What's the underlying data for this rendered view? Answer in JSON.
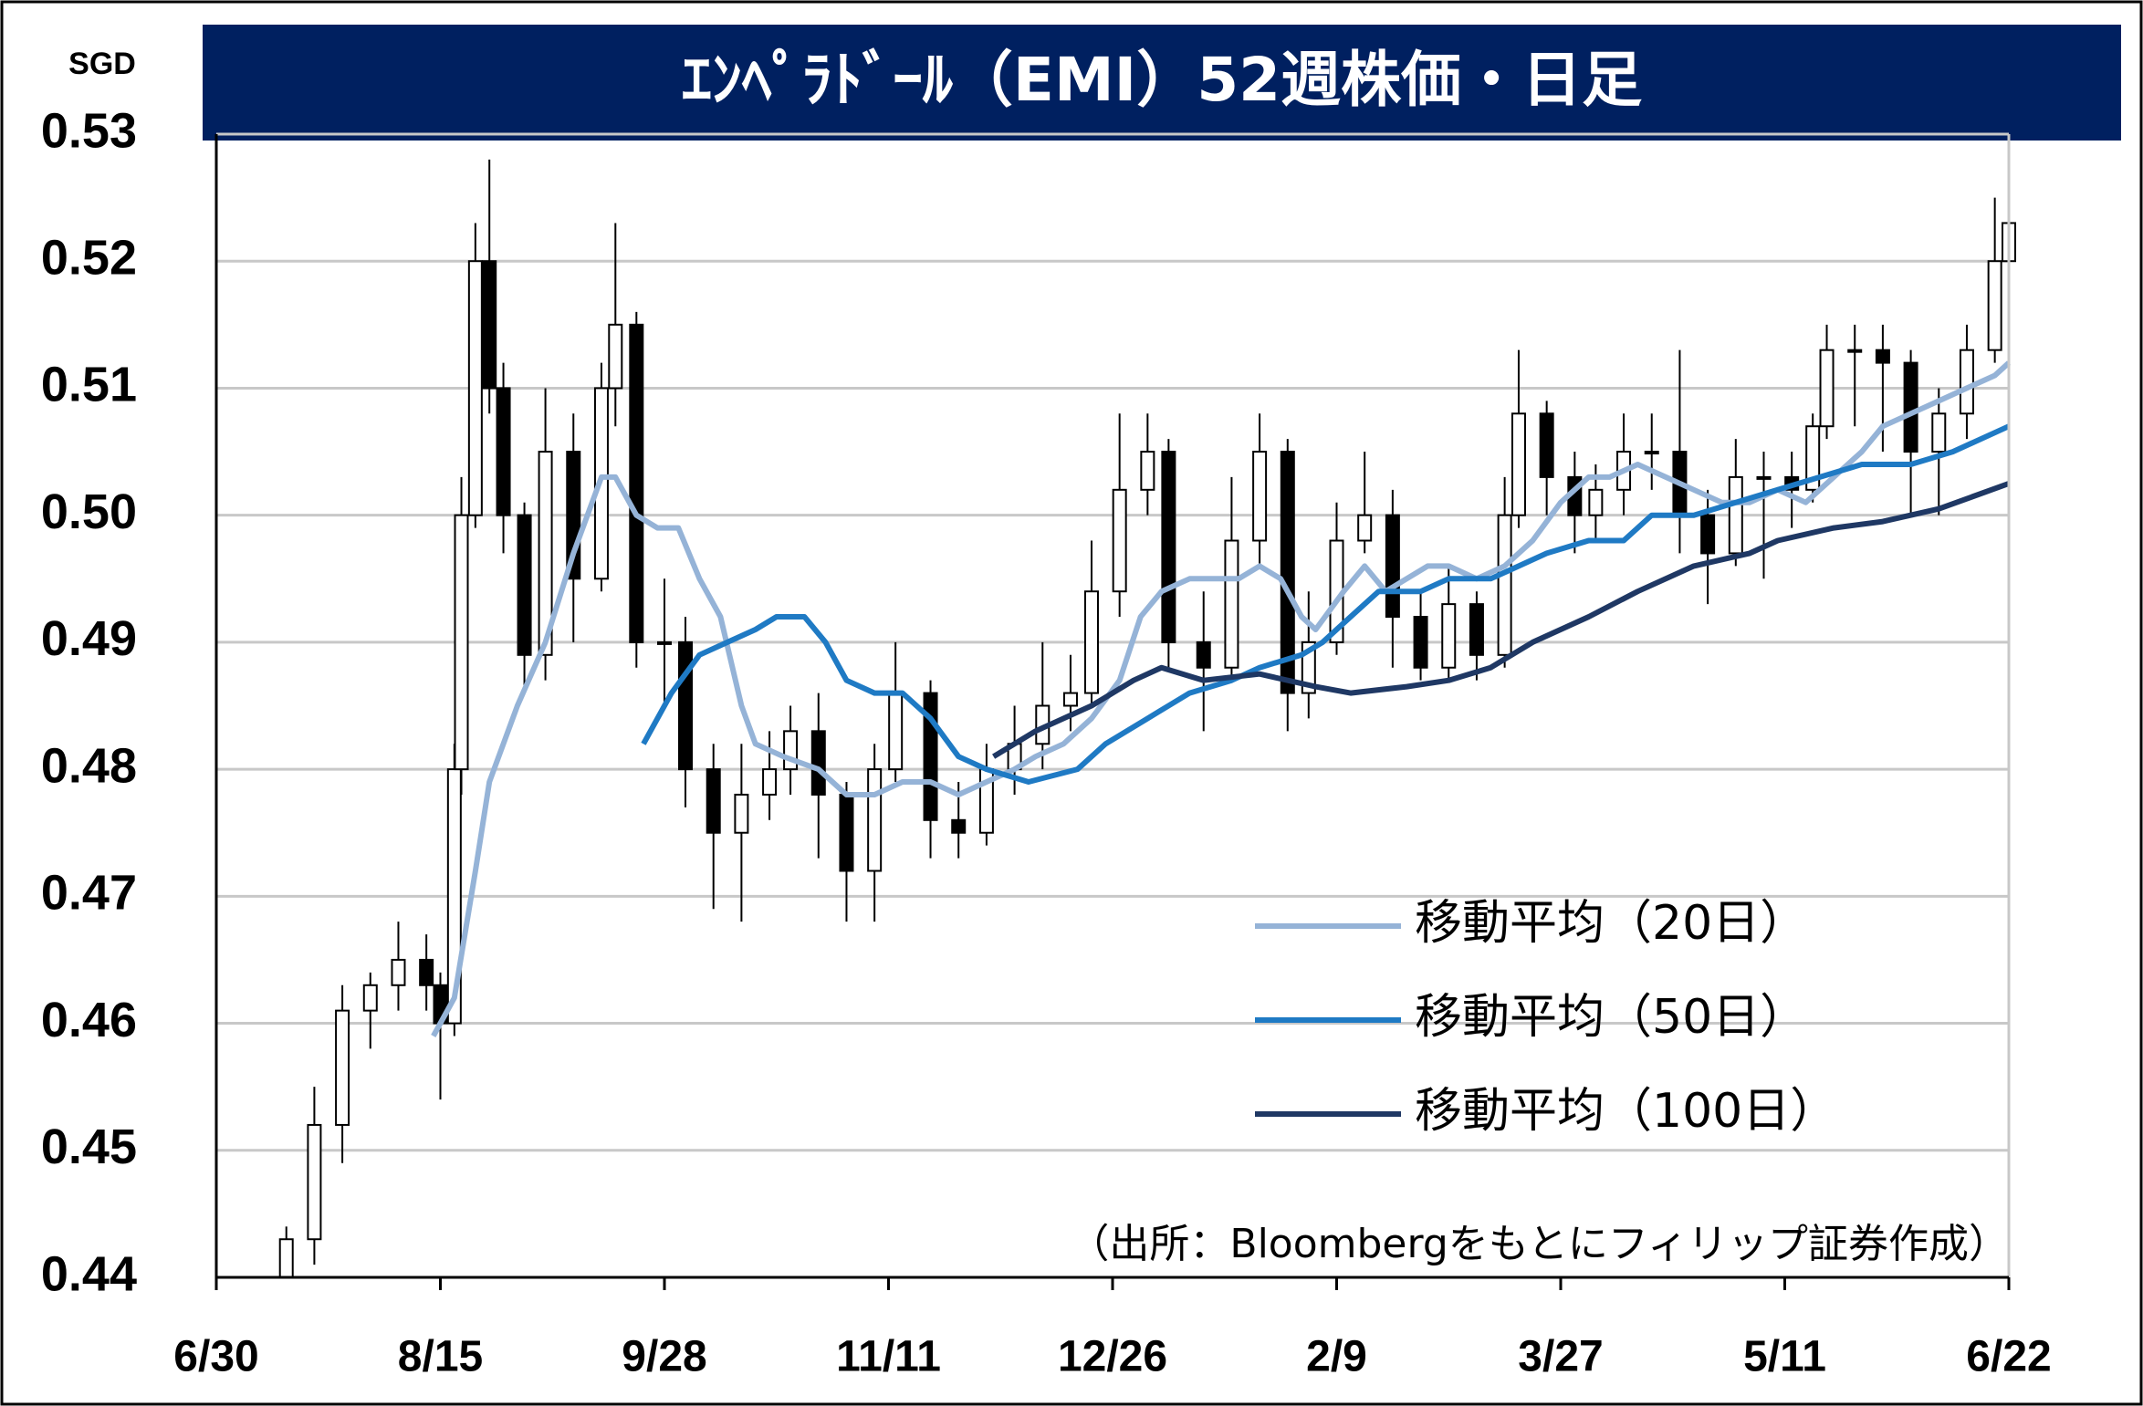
{
  "chart_data": {
    "type": "candlestick",
    "title": "ｴﾝﾍﾟﾗﾄﾞｰﾙ（EMI）52週株価・日足",
    "y_unit_label": "SGD",
    "source": "（出所：Bloombergをもとにフィリップ証券作成）",
    "candles": {
      "up_color": "#ffffff",
      "down_color": "#000000",
      "x": [
        10,
        14,
        18,
        22,
        26,
        30,
        32,
        34,
        35,
        37,
        39,
        41,
        44,
        47,
        51,
        55,
        57,
        60,
        64,
        67,
        71,
        75,
        79,
        82,
        86,
        90,
        94,
        97,
        102,
        106,
        110,
        114,
        118,
        122,
        125,
        129,
        133,
        136,
        141,
        145,
        149,
        153,
        156,
        160,
        164,
        168,
        172,
        176,
        180,
        184,
        186,
        190,
        194,
        197,
        201,
        205,
        209,
        213,
        217,
        221,
        225,
        228,
        230,
        234,
        238,
        242,
        246,
        250,
        254,
        256
      ],
      "open": [
        0.44,
        0.443,
        0.452,
        0.461,
        0.463,
        0.465,
        0.463,
        0.46,
        0.48,
        0.5,
        0.52,
        0.51,
        0.5,
        0.489,
        0.505,
        0.495,
        0.51,
        0.515,
        0.49,
        0.49,
        0.48,
        0.475,
        0.478,
        0.48,
        0.483,
        0.478,
        0.472,
        0.48,
        0.486,
        0.476,
        0.475,
        0.48,
        0.482,
        0.485,
        0.486,
        0.494,
        0.502,
        0.505,
        0.49,
        0.488,
        0.498,
        0.505,
        0.486,
        0.49,
        0.498,
        0.5,
        0.492,
        0.488,
        0.493,
        0.489,
        0.5,
        0.508,
        0.503,
        0.5,
        0.502,
        0.505,
        0.505,
        0.5,
        0.497,
        0.503,
        0.503,
        0.502,
        0.507,
        0.513,
        0.513,
        0.512,
        0.505,
        0.508,
        0.513,
        0.52
      ],
      "high": [
        0.444,
        0.455,
        0.463,
        0.464,
        0.468,
        0.467,
        0.464,
        0.482,
        0.503,
        0.523,
        0.528,
        0.512,
        0.501,
        0.51,
        0.508,
        0.512,
        0.523,
        0.516,
        0.495,
        0.492,
        0.482,
        0.482,
        0.483,
        0.485,
        0.486,
        0.479,
        0.482,
        0.49,
        0.487,
        0.479,
        0.482,
        0.485,
        0.49,
        0.489,
        0.498,
        0.508,
        0.508,
        0.506,
        0.494,
        0.503,
        0.508,
        0.506,
        0.494,
        0.501,
        0.505,
        0.502,
        0.494,
        0.496,
        0.494,
        0.503,
        0.513,
        0.509,
        0.505,
        0.504,
        0.508,
        0.508,
        0.513,
        0.502,
        0.506,
        0.505,
        0.505,
        0.508,
        0.515,
        0.515,
        0.515,
        0.513,
        0.51,
        0.515,
        0.525,
        0.525
      ],
      "low": [
        0.44,
        0.441,
        0.449,
        0.458,
        0.461,
        0.461,
        0.454,
        0.459,
        0.478,
        0.499,
        0.508,
        0.497,
        0.486,
        0.487,
        0.49,
        0.494,
        0.507,
        0.488,
        0.485,
        0.477,
        0.469,
        0.468,
        0.476,
        0.478,
        0.473,
        0.468,
        0.468,
        0.479,
        0.473,
        0.473,
        0.474,
        0.478,
        0.48,
        0.483,
        0.485,
        0.492,
        0.5,
        0.488,
        0.483,
        0.487,
        0.496,
        0.483,
        0.484,
        0.489,
        0.497,
        0.488,
        0.487,
        0.487,
        0.487,
        0.488,
        0.499,
        0.5,
        0.497,
        0.498,
        0.5,
        0.502,
        0.497,
        0.493,
        0.496,
        0.495,
        0.499,
        0.501,
        0.506,
        0.507,
        0.505,
        0.5,
        0.5,
        0.506,
        0.512,
        0.518
      ],
      "close": [
        0.443,
        0.452,
        0.461,
        0.463,
        0.465,
        0.463,
        0.46,
        0.48,
        0.5,
        0.52,
        0.51,
        0.5,
        0.489,
        0.505,
        0.495,
        0.51,
        0.515,
        0.49,
        0.49,
        0.48,
        0.475,
        0.478,
        0.48,
        0.483,
        0.478,
        0.472,
        0.48,
        0.486,
        0.476,
        0.475,
        0.48,
        0.482,
        0.485,
        0.486,
        0.494,
        0.502,
        0.505,
        0.49,
        0.488,
        0.498,
        0.505,
        0.486,
        0.49,
        0.498,
        0.5,
        0.492,
        0.488,
        0.493,
        0.489,
        0.5,
        0.508,
        0.503,
        0.5,
        0.502,
        0.505,
        0.505,
        0.5,
        0.497,
        0.503,
        0.503,
        0.502,
        0.507,
        0.513,
        0.513,
        0.512,
        0.505,
        0.508,
        0.513,
        0.52,
        0.523
      ]
    },
    "series": [
      {
        "name": "移動平均（20日）",
        "color": "#95b3d7",
        "x": [
          31,
          34,
          37,
          39,
          43,
          47,
          51,
          55,
          57,
          60,
          63,
          66,
          69,
          72,
          75,
          77,
          81,
          86,
          90,
          94,
          98,
          102,
          106,
          110,
          114,
          117,
          121,
          125,
          129,
          132,
          135,
          139,
          143,
          146,
          149,
          152,
          155,
          157,
          161,
          164,
          167,
          170,
          173,
          176,
          180,
          184,
          188,
          192,
          196,
          199,
          203,
          207,
          211,
          215,
          219,
          223,
          227,
          231,
          235,
          238,
          242,
          246,
          250,
          254,
          256
        ],
        "values": [
          0.459,
          0.462,
          0.472,
          0.479,
          0.485,
          0.49,
          0.497,
          0.503,
          0.503,
          0.5,
          0.499,
          0.499,
          0.495,
          0.492,
          0.485,
          0.482,
          0.481,
          0.48,
          0.478,
          0.478,
          0.479,
          0.479,
          0.478,
          0.479,
          0.48,
          0.481,
          0.482,
          0.484,
          0.487,
          0.492,
          0.494,
          0.495,
          0.495,
          0.495,
          0.496,
          0.495,
          0.492,
          0.491,
          0.494,
          0.496,
          0.494,
          0.495,
          0.496,
          0.496,
          0.495,
          0.496,
          0.498,
          0.501,
          0.503,
          0.503,
          0.504,
          0.503,
          0.502,
          0.501,
          0.501,
          0.502,
          0.501,
          0.503,
          0.505,
          0.507,
          0.508,
          0.509,
          0.51,
          0.511,
          0.512
        ]
      },
      {
        "name": "移動平均（50日）",
        "color": "#1f7ac4",
        "x": [
          61,
          65,
          69,
          73,
          77,
          80,
          84,
          87,
          90,
          94,
          98,
          102,
          106,
          110,
          116,
          123,
          127,
          133,
          139,
          145,
          149,
          155,
          158,
          162,
          166,
          172,
          176,
          182,
          186,
          190,
          196,
          201,
          205,
          211,
          217,
          223,
          229,
          235,
          242,
          248,
          256
        ],
        "values": [
          0.482,
          0.486,
          0.489,
          0.49,
          0.491,
          0.492,
          0.492,
          0.49,
          0.487,
          0.486,
          0.486,
          0.484,
          0.481,
          0.48,
          0.479,
          0.48,
          0.482,
          0.484,
          0.486,
          0.487,
          0.488,
          0.489,
          0.49,
          0.492,
          0.494,
          0.494,
          0.495,
          0.495,
          0.496,
          0.497,
          0.498,
          0.498,
          0.5,
          0.5,
          0.501,
          0.502,
          0.503,
          0.504,
          0.504,
          0.505,
          0.507
        ]
      },
      {
        "name": "移動平均（100日）",
        "color": "#1f3864",
        "x": [
          111,
          117,
          125,
          131,
          135,
          141,
          149,
          157,
          162,
          170,
          176,
          182,
          188,
          196,
          203,
          211,
          219,
          223,
          231,
          238,
          246,
          256
        ],
        "values": [
          0.481,
          0.483,
          0.485,
          0.487,
          0.488,
          0.487,
          0.4875,
          0.4865,
          0.486,
          0.4865,
          0.487,
          0.488,
          0.49,
          0.492,
          0.494,
          0.496,
          0.497,
          0.498,
          0.499,
          0.4995,
          0.5005,
          0.5025
        ]
      }
    ],
    "xlim": [
      0,
      256
    ],
    "xticks": [
      {
        "value": 0,
        "label": "6/30"
      },
      {
        "value": 32,
        "label": "8/15"
      },
      {
        "value": 64,
        "label": "9/28"
      },
      {
        "value": 96,
        "label": "11/11"
      },
      {
        "value": 128,
        "label": "12/26"
      },
      {
        "value": 160,
        "label": "2/9"
      },
      {
        "value": 192,
        "label": "3/27"
      },
      {
        "value": 224,
        "label": "5/11"
      },
      {
        "value": 256,
        "label": "6/22"
      }
    ],
    "ylim": [
      0.44,
      0.53
    ],
    "yticks": [
      0.44,
      0.45,
      0.46,
      0.47,
      0.48,
      0.49,
      {
        "value": 0.5,
        "label": "0.50"
      },
      0.51,
      0.52,
      0.53
    ],
    "grid": true,
    "legend": "lower right"
  }
}
